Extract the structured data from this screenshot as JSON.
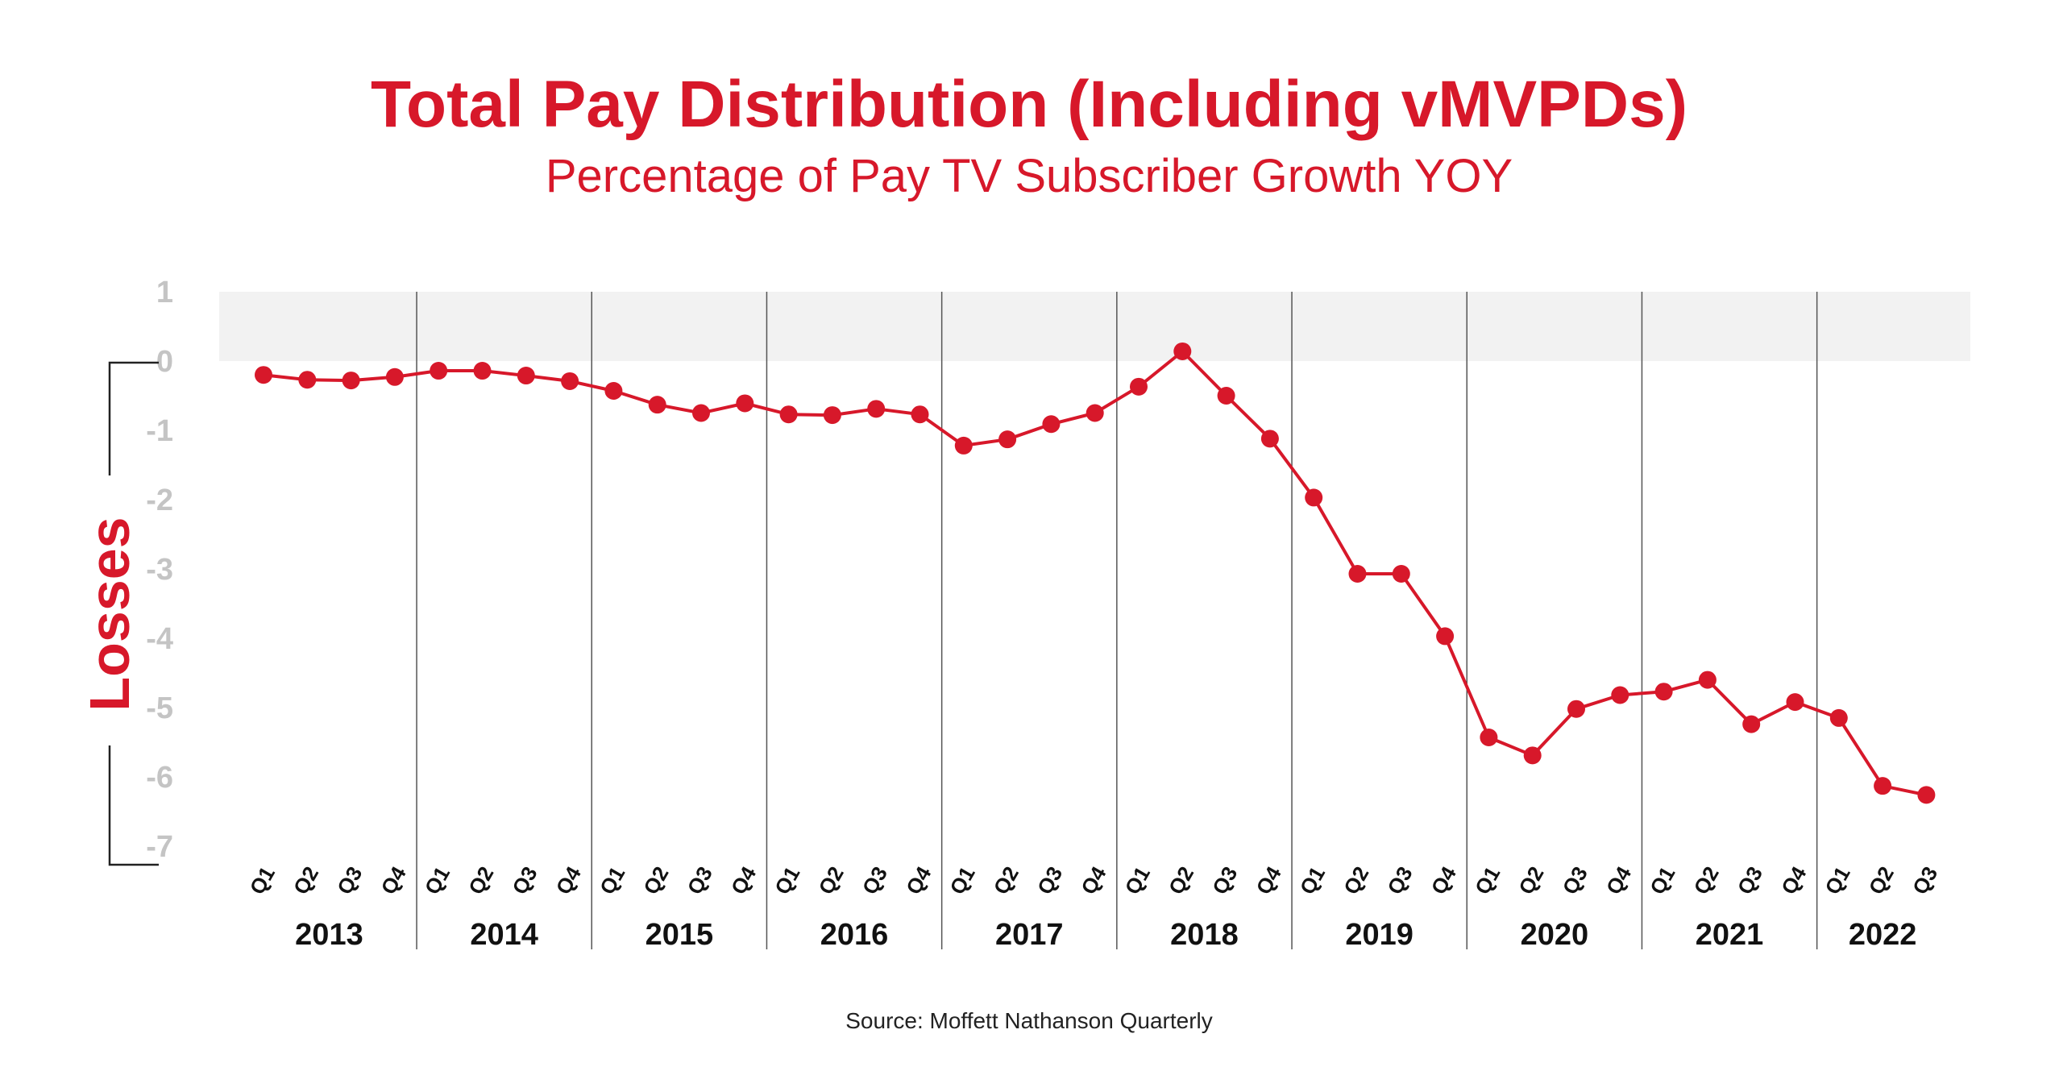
{
  "colors": {
    "accent": "#d7182a",
    "positive_band": "#f2f2f2",
    "tick_gray": "#c4c4c4",
    "divider": "#555555"
  },
  "chart_data": {
    "type": "line",
    "title": "Total Pay Distribution (Including vMVPDs)",
    "subtitle": "Percentage of Pay TV Subscriber Growth YOY",
    "ylabel": "Losses",
    "source": "Source: Moffett Nathanson Quarterly",
    "ylim": [
      -7,
      1
    ],
    "yticks": [
      "1",
      "0",
      "-1",
      "-2",
      "-3",
      "-4",
      "-5",
      "-6",
      "-7"
    ],
    "positive_band": [
      0,
      1
    ],
    "years": [
      {
        "label": "2013",
        "quarters": [
          "Q1",
          "Q2",
          "Q3",
          "Q4"
        ]
      },
      {
        "label": "2014",
        "quarters": [
          "Q1",
          "Q2",
          "Q3",
          "Q4"
        ]
      },
      {
        "label": "2015",
        "quarters": [
          "Q1",
          "Q2",
          "Q3",
          "Q4"
        ]
      },
      {
        "label": "2016",
        "quarters": [
          "Q1",
          "Q2",
          "Q3",
          "Q4"
        ]
      },
      {
        "label": "2017",
        "quarters": [
          "Q1",
          "Q2",
          "Q3",
          "Q4"
        ]
      },
      {
        "label": "2018",
        "quarters": [
          "Q1",
          "Q2",
          "Q3",
          "Q4"
        ]
      },
      {
        "label": "2019",
        "quarters": [
          "Q1",
          "Q2",
          "Q3",
          "Q4"
        ]
      },
      {
        "label": "2020",
        "quarters": [
          "Q1",
          "Q2",
          "Q3",
          "Q4"
        ]
      },
      {
        "label": "2021",
        "quarters": [
          "Q1",
          "Q2",
          "Q3",
          "Q4"
        ]
      },
      {
        "label": "2022",
        "quarters": [
          "Q1",
          "Q2",
          "Q3"
        ]
      }
    ],
    "values": [
      -0.2,
      -0.27,
      -0.28,
      -0.23,
      -0.14,
      -0.14,
      -0.21,
      -0.29,
      -0.43,
      -0.63,
      -0.75,
      -0.61,
      -0.77,
      -0.78,
      -0.69,
      -0.77,
      -1.22,
      -1.13,
      -0.91,
      -0.75,
      -0.37,
      0.14,
      -0.5,
      -1.12,
      -1.97,
      -3.07,
      -3.07,
      -3.97,
      -5.43,
      -5.69,
      -5.02,
      -4.82,
      -4.77,
      -4.6,
      -5.24,
      -4.92,
      -5.15,
      -6.13,
      -6.26
    ]
  }
}
